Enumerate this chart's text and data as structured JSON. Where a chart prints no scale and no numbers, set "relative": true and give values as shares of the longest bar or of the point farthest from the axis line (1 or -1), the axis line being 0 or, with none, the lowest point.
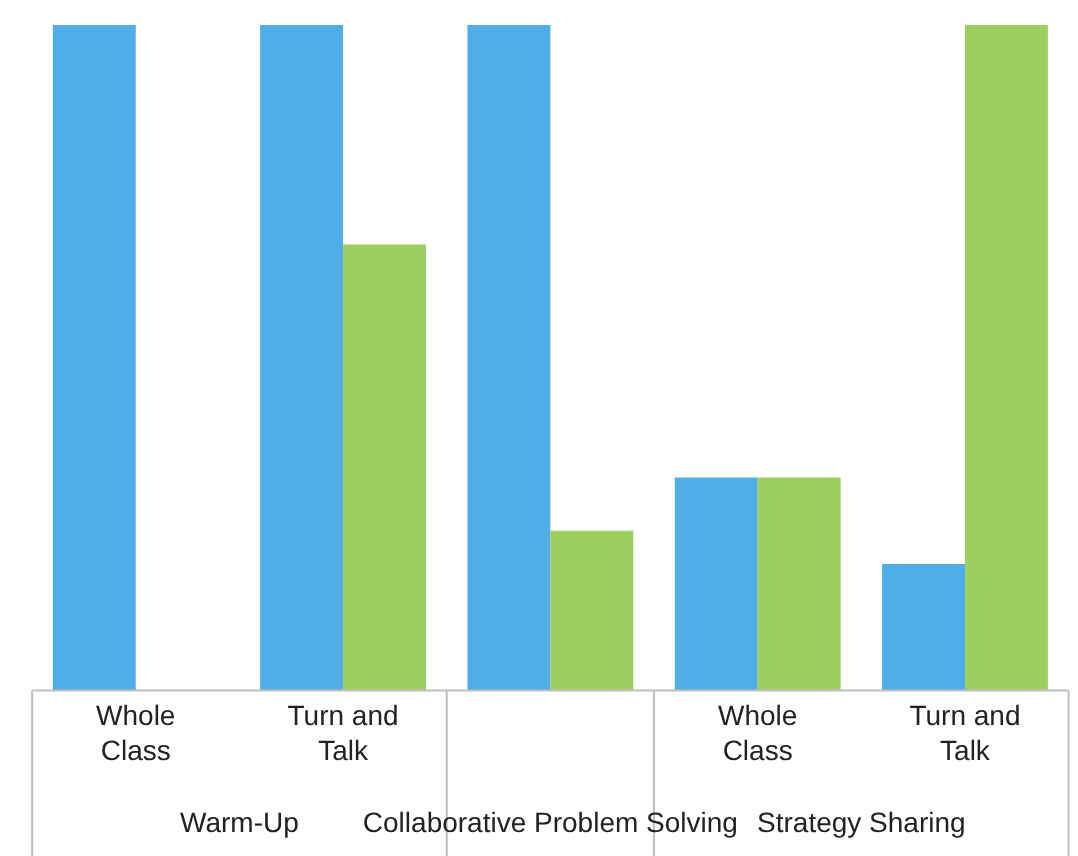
{
  "chart_data": {
    "type": "bar",
    "relative": true,
    "categories": [
      "Whole Class",
      "Turn and Talk",
      null,
      "Whole Class",
      "Turn and Talk"
    ],
    "series": [
      {
        "color": "#4faee8",
        "values": [
          1,
          1,
          1,
          0.32,
          0.19
        ]
      },
      {
        "color": "#9dcf5f",
        "values": [
          0,
          0.67,
          0.24,
          0.32,
          1
        ]
      }
    ],
    "annotations": [
      "Warm-Up",
      "Collaborative Problem Solving",
      "Strategy Sharing"
    ],
    "stacked": false
  }
}
